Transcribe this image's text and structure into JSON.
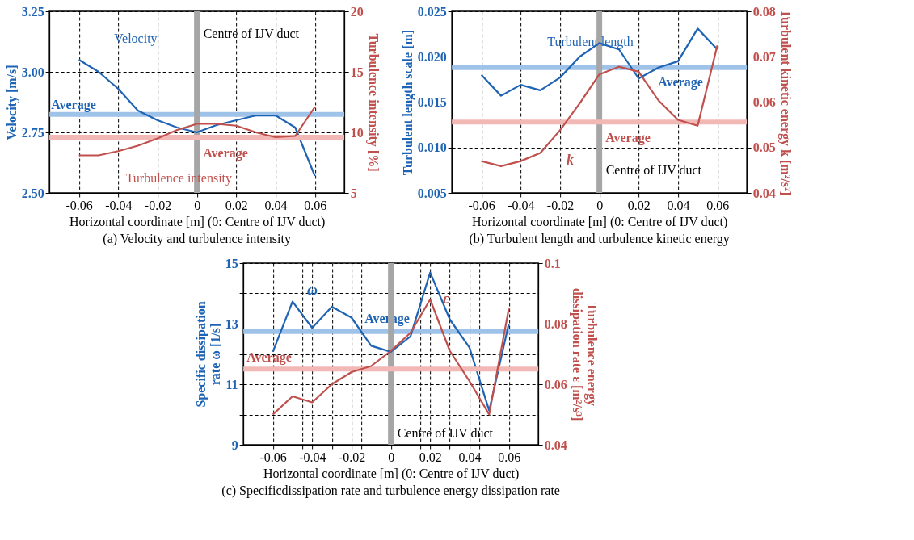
{
  "chart_data": [
    {
      "type": "line",
      "title": "(a) Velocity and turbulence intensity",
      "xlabel": "Horizontal coordinate [m] (0: Centre of IJV duct)",
      "ylabel": "Velocity [m/s]",
      "y2label": "Turbulence intensity [%]",
      "x": [
        -0.06,
        -0.05,
        -0.04,
        -0.03,
        -0.02,
        -0.01,
        0,
        0.01,
        0.02,
        0.03,
        0.04,
        0.05,
        0.06
      ],
      "series": [
        {
          "name": "Velocity",
          "color": "#1f64b4",
          "values": [
            3.05,
            3.0,
            2.93,
            2.84,
            2.8,
            2.77,
            2.75,
            2.78,
            2.8,
            2.82,
            2.82,
            2.77,
            2.57
          ]
        },
        {
          "name": "Turbulence intensity",
          "color": "#c0504d",
          "axis": "y2",
          "values": [
            8.1,
            8.1,
            8.45,
            8.9,
            9.5,
            10.2,
            10.7,
            10.7,
            10.55,
            10.0,
            9.6,
            9.7,
            12.1
          ]
        }
      ],
      "xlim": [
        -0.075,
        0.075
      ],
      "xticks": [
        -0.06,
        -0.04,
        -0.02,
        0,
        0.02,
        0.04,
        0.06
      ],
      "ylim": [
        2.5,
        3.25
      ],
      "yticks": [
        {
          "value": 2.5,
          "label": "2.50"
        },
        2.75,
        {
          "value": 3.0,
          "label": "3.00"
        },
        3.25
      ],
      "y2lim": [
        5,
        20
      ],
      "y2ticks": [
        5,
        10,
        15,
        20
      ],
      "ref_lines": [
        {
          "axis": "y",
          "value": 2.824,
          "label": "Average",
          "color": "#9fc3e8"
        },
        {
          "axis": "y2",
          "value": 9.6,
          "label": "Average",
          "color": "#f2b8b6"
        },
        {
          "axis": "x",
          "value": 0,
          "label": "Centre of IJV duct",
          "color": "#a6a6a6"
        }
      ],
      "grid": true
    },
    {
      "type": "line",
      "title": "(b) Turbulent length and turbulence kinetic energy",
      "xlabel": "Horizontal coordinate [m] (0: Centre of IJV duct)",
      "ylabel": "Turbulent length scale [m]",
      "y2label": "Turbulent kinetic energy k [m²/s²]",
      "x": [
        -0.06,
        -0.05,
        -0.04,
        -0.03,
        -0.02,
        -0.01,
        0,
        0.01,
        0.02,
        0.03,
        0.04,
        0.05,
        0.06
      ],
      "series": [
        {
          "name": "Turbulent length",
          "color": "#1f64b4",
          "values": [
            0.018,
            0.0157,
            0.0169,
            0.0163,
            0.0177,
            0.02,
            0.0215,
            0.0208,
            0.0176,
            0.0188,
            0.0195,
            0.0231,
            0.0208
          ]
        },
        {
          "name": "k",
          "color": "#c0504d",
          "axis": "y2",
          "values": [
            0.047,
            0.0459,
            0.047,
            0.0488,
            0.0538,
            0.0597,
            0.0661,
            0.0678,
            0.0667,
            0.0604,
            0.0561,
            0.0548,
            0.0725
          ]
        }
      ],
      "xlim": [
        -0.075,
        0.075
      ],
      "xticks": [
        -0.06,
        -0.04,
        -0.02,
        0,
        0.02,
        0.04,
        0.06
      ],
      "ylim": [
        0.005,
        0.025
      ],
      "yticks": [
        {
          "value": 0.005,
          "label": "0.005"
        },
        {
          "value": 0.01,
          "label": "0.010"
        },
        {
          "value": 0.015,
          "label": "0.015"
        },
        {
          "value": 0.02,
          "label": "0.020"
        },
        {
          "value": 0.025,
          "label": "0.025"
        }
      ],
      "y2lim": [
        0.04,
        0.08
      ],
      "y2ticks": [
        0.04,
        0.05,
        0.06,
        0.07,
        0.08
      ],
      "ref_lines": [
        {
          "axis": "y",
          "value": 0.0188,
          "label": "Average",
          "color": "#9fc3e8"
        },
        {
          "axis": "y2",
          "value": 0.0556,
          "label": "Average",
          "color": "#f2b8b6"
        },
        {
          "axis": "x",
          "value": 0,
          "label": "Centre of IJV duct",
          "color": "#a6a6a6"
        }
      ],
      "grid": true
    },
    {
      "type": "line",
      "title": "(c) Specificdissipation rate and turbulence energy dissipation rate",
      "xlabel": "Horizontal coordinate [m] (0: Centre of IJV duct)",
      "ylabel": "Specific dissipation\nrate ω [1/s]",
      "y2label": "Turbulence energy\ndissipation rate ε [m²/s³]",
      "x": [
        -0.06,
        -0.05,
        -0.04,
        -0.03,
        -0.02,
        -0.01,
        0,
        0.01,
        0.02,
        0.03,
        0.04,
        0.05,
        0.06
      ],
      "series": [
        {
          "name": "ω",
          "color": "#1f64b4",
          "values": [
            12.07,
            13.73,
            12.86,
            13.56,
            13.2,
            12.27,
            12.07,
            12.58,
            14.69,
            13.14,
            12.21,
            10.13,
            13.0
          ]
        },
        {
          "name": "ε",
          "color": "#c0504d",
          "axis": "y2",
          "values": [
            0.05,
            0.056,
            0.054,
            0.06,
            0.064,
            0.066,
            0.071,
            0.077,
            0.088,
            0.071,
            0.061,
            0.05,
            0.085
          ]
        }
      ],
      "xlim": [
        -0.075,
        0.075
      ],
      "xticks": [
        -0.06,
        {
          "value": -0.045,
          "label": null
        },
        -0.04,
        {
          "value": -0.03,
          "label": null
        },
        -0.02,
        {
          "value": -0.015,
          "label": null
        },
        0,
        {
          "value": 0.015,
          "label": null
        },
        0.02,
        {
          "value": 0.03,
          "label": null
        },
        0.04,
        {
          "value": 0.045,
          "label": null
        },
        0.06
      ],
      "ylim": [
        9,
        15
      ],
      "yticks": [
        9,
        {
          "value": 10,
          "label": null
        },
        11,
        {
          "value": 12,
          "label": null
        },
        13,
        {
          "value": 14,
          "label": null
        },
        15
      ],
      "y2lim": [
        0.04,
        0.1
      ],
      "y2ticks": [
        0.04,
        0.06,
        0.08,
        0.1
      ],
      "ref_lines": [
        {
          "axis": "y",
          "value": 12.74,
          "label": "Average",
          "color": "#9fc3e8"
        },
        {
          "axis": "y2",
          "value": 0.065,
          "label": "Average",
          "color": "#f2b8b6"
        },
        {
          "axis": "x",
          "value": 0,
          "label": "Centre of IJV duct",
          "color": "#a6a6a6"
        }
      ],
      "grid": true
    }
  ]
}
